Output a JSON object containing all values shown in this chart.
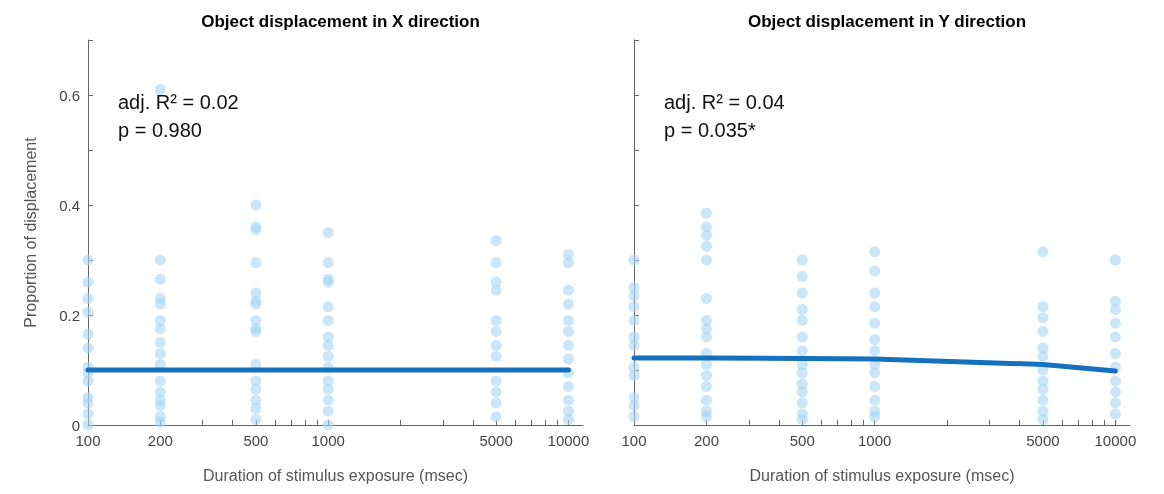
{
  "chart_data": [
    {
      "type": "scatter",
      "title": "Object displacement in X direction",
      "xlabel": "Duration of stimulus exposure (msec)",
      "ylabel": "Proportion of displacement",
      "log": "x",
      "grid": false,
      "xlim": [
        100,
        11500
      ],
      "ylim": [
        0,
        0.7
      ],
      "xticks": [
        100,
        200,
        {
          "value": 300,
          "label": null
        },
        {
          "value": 400,
          "label": null
        },
        500,
        {
          "value": 600,
          "label": null
        },
        {
          "value": 700,
          "label": null
        },
        {
          "value": 800,
          "label": null
        },
        {
          "value": 900,
          "label": null
        },
        1000,
        {
          "value": 2000,
          "label": null
        },
        {
          "value": 3000,
          "label": null
        },
        {
          "value": 4000,
          "label": null
        },
        5000,
        {
          "value": 6000,
          "label": null
        },
        {
          "value": 7000,
          "label": null
        },
        {
          "value": 8000,
          "label": null
        },
        {
          "value": 9000,
          "label": null
        },
        10000
      ],
      "yticks": [
        0,
        {
          "value": 0.1,
          "label": null
        },
        0.2,
        {
          "value": 0.3,
          "label": null
        },
        0.4,
        {
          "value": 0.5,
          "label": null
        },
        0.6,
        {
          "value": 0.7,
          "label": null
        }
      ],
      "annotations": [
        "adj. R² = 0.02",
        "p = 0.980"
      ],
      "series": [
        {
          "marker": "circle",
          "color": "#a6d6f3",
          "x": [
            100,
            100,
            100,
            100,
            100,
            100,
            100,
            100,
            100,
            100,
            100,
            100,
            100,
            200,
            200,
            200,
            200,
            200,
            200,
            200,
            200,
            200,
            200,
            200,
            200,
            200,
            200,
            200,
            200,
            500,
            500,
            500,
            500,
            500,
            500,
            500,
            500,
            500,
            500,
            500,
            500,
            500,
            500,
            500,
            500,
            1000,
            1000,
            1000,
            1000,
            1000,
            1000,
            1000,
            1000,
            1000,
            1000,
            1000,
            1000,
            1000,
            1000,
            1000,
            5000,
            5000,
            5000,
            5000,
            5000,
            5000,
            5000,
            5000,
            5000,
            5000,
            5000,
            5000,
            10000,
            10000,
            10000,
            10000,
            10000,
            10000,
            10000,
            10000,
            10000,
            10000,
            10000,
            10000,
            10000
          ],
          "values": [
            0.3,
            0.26,
            0.23,
            0.205,
            0.165,
            0.14,
            0.105,
            0.095,
            0.08,
            0.05,
            0.04,
            0.02,
            0.0,
            0.61,
            0.3,
            0.265,
            0.23,
            0.22,
            0.19,
            0.175,
            0.15,
            0.13,
            0.11,
            0.08,
            0.06,
            0.045,
            0.035,
            0.015,
            0.005,
            0.4,
            0.36,
            0.355,
            0.295,
            0.24,
            0.225,
            0.22,
            0.19,
            0.175,
            0.17,
            0.11,
            0.08,
            0.065,
            0.045,
            0.03,
            0.01,
            0.35,
            0.295,
            0.265,
            0.26,
            0.215,
            0.19,
            0.16,
            0.145,
            0.125,
            0.105,
            0.08,
            0.065,
            0.045,
            0.025,
            0.0,
            0.335,
            0.295,
            0.26,
            0.245,
            0.19,
            0.17,
            0.145,
            0.125,
            0.08,
            0.06,
            0.04,
            0.015,
            0.31,
            0.295,
            0.245,
            0.22,
            0.19,
            0.17,
            0.145,
            0.12,
            0.095,
            0.07,
            0.045,
            0.025,
            0.01
          ]
        },
        {
          "type": "line",
          "marker": "none",
          "color": "#1570be",
          "x": [
            100,
            200,
            500,
            1000,
            5000,
            10000
          ],
          "values": [
            0.1,
            0.1,
            0.1,
            0.1,
            0.1,
            0.1
          ]
        }
      ]
    },
    {
      "type": "scatter",
      "title": "Object displacement in Y direction",
      "xlabel": "Duration of stimulus exposure (msec)",
      "log": "x",
      "grid": false,
      "tick_labels": "x",
      "xlim": [
        100,
        11500
      ],
      "ylim": [
        0,
        0.7
      ],
      "xticks": [
        100,
        200,
        {
          "value": 300,
          "label": null
        },
        {
          "value": 400,
          "label": null
        },
        500,
        {
          "value": 600,
          "label": null
        },
        {
          "value": 700,
          "label": null
        },
        {
          "value": 800,
          "label": null
        },
        {
          "value": 900,
          "label": null
        },
        1000,
        {
          "value": 2000,
          "label": null
        },
        {
          "value": 3000,
          "label": null
        },
        {
          "value": 4000,
          "label": null
        },
        5000,
        {
          "value": 6000,
          "label": null
        },
        {
          "value": 7000,
          "label": null
        },
        {
          "value": 8000,
          "label": null
        },
        {
          "value": 9000,
          "label": null
        },
        10000
      ],
      "yticks": [
        0,
        0.1,
        0.2,
        0.3,
        0.4,
        0.5,
        0.6,
        0.7
      ],
      "annotations": [
        "adj. R² = 0.04",
        "p = 0.035*"
      ],
      "series": [
        {
          "marker": "circle",
          "color": "#a6d6f3",
          "x": [
            100,
            100,
            100,
            100,
            100,
            100,
            100,
            100,
            100,
            100,
            100,
            100,
            200,
            200,
            200,
            200,
            200,
            200,
            200,
            200,
            200,
            200,
            200,
            200,
            200,
            200,
            200,
            200,
            500,
            500,
            500,
            500,
            500,
            500,
            500,
            500,
            500,
            500,
            500,
            500,
            500,
            500,
            1000,
            1000,
            1000,
            1000,
            1000,
            1000,
            1000,
            1000,
            1000,
            1000,
            1000,
            1000,
            1000,
            5000,
            5000,
            5000,
            5000,
            5000,
            5000,
            5000,
            5000,
            5000,
            5000,
            5000,
            5000,
            10000,
            10000,
            10000,
            10000,
            10000,
            10000,
            10000,
            10000,
            10000,
            10000,
            10000
          ],
          "values": [
            0.3,
            0.25,
            0.235,
            0.215,
            0.19,
            0.16,
            0.145,
            0.105,
            0.09,
            0.05,
            0.035,
            0.015,
            0.385,
            0.36,
            0.345,
            0.325,
            0.3,
            0.23,
            0.19,
            0.175,
            0.16,
            0.13,
            0.11,
            0.09,
            0.07,
            0.045,
            0.025,
            0.015,
            0.3,
            0.27,
            0.24,
            0.21,
            0.19,
            0.16,
            0.135,
            0.11,
            0.095,
            0.075,
            0.06,
            0.04,
            0.02,
            0.01,
            0.315,
            0.28,
            0.24,
            0.215,
            0.185,
            0.155,
            0.135,
            0.11,
            0.095,
            0.07,
            0.045,
            0.025,
            0.015,
            0.315,
            0.215,
            0.195,
            0.17,
            0.14,
            0.125,
            0.1,
            0.08,
            0.065,
            0.045,
            0.025,
            0.01,
            0.3,
            0.225,
            0.21,
            0.185,
            0.16,
            0.13,
            0.105,
            0.08,
            0.06,
            0.04,
            0.02
          ]
        },
        {
          "type": "line",
          "marker": "none",
          "color": "#1570be",
          "x": [
            100,
            200,
            500,
            1000,
            5000,
            10000
          ],
          "values": [
            0.122,
            0.122,
            0.121,
            0.12,
            0.11,
            0.098
          ]
        }
      ]
    }
  ]
}
